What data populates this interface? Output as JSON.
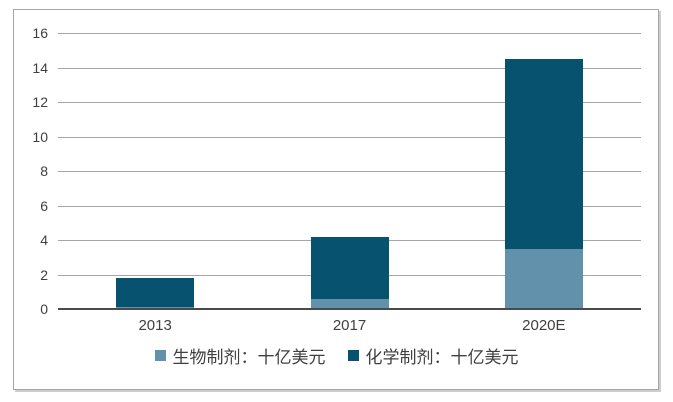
{
  "chart_data": {
    "type": "bar",
    "stacked": true,
    "title": "",
    "xlabel": "",
    "ylabel": "",
    "categories": [
      "2013",
      "2017",
      "2020E"
    ],
    "series": [
      {
        "key": "biologics",
        "name": "生物制剂：十亿美元",
        "color": "#6292ab",
        "values": [
          0.1,
          0.6,
          3.5
        ]
      },
      {
        "key": "chemicals",
        "name": "化学制剂：十亿美元",
        "color": "#07536f",
        "values": [
          1.7,
          3.6,
          11.0
        ]
      }
    ],
    "totals": [
      1.8,
      4.2,
      14.5
    ],
    "ylim": [
      0,
      16
    ],
    "ytick_step": 2,
    "ytick_labels": [
      "0",
      "2",
      "4",
      "6",
      "8",
      "10",
      "12",
      "14",
      "16"
    ],
    "grid": true,
    "legend_position": "bottom"
  },
  "colors": {
    "bar_biologics": "#6292ab",
    "bar_chemicals": "#07536f",
    "gridline": "#a6a6a6",
    "axis_line": "#4a4a4a",
    "text": "#404040",
    "frame_border": "#a6a6a6",
    "background": "#ffffff"
  }
}
